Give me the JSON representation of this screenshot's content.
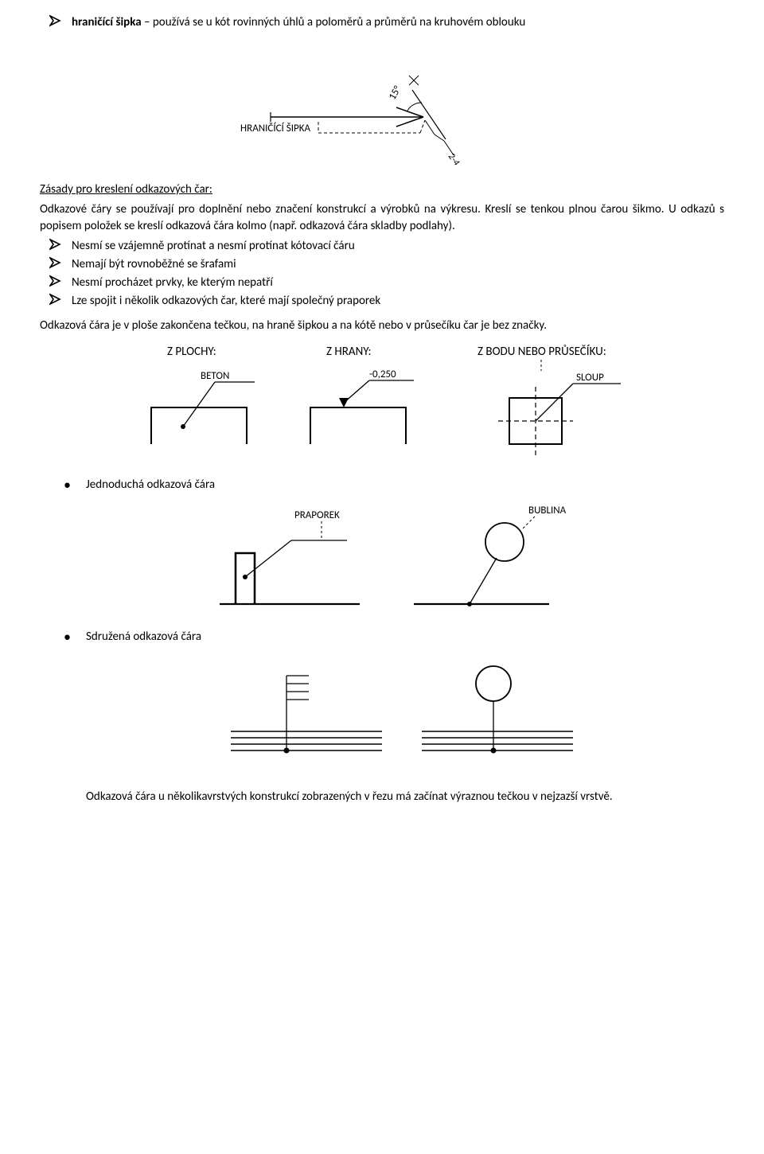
{
  "intro_bullet": {
    "label": "hraničící šipka",
    "rest": " – používá se u kót rovinných úhlů a poloměrů a průměrů na kruhovém oblouku"
  },
  "fig1": {
    "angle_label": "15°",
    "arrow_label": "HRANIČÍCÍ ŠIPKA",
    "dim_label": "2-4 MM",
    "line_color": "#000000",
    "dash": "4,3"
  },
  "section1_title": "Zásady pro kreslení odkazových čar:",
  "section1_p1": "Odkazové čáry se používají pro doplnění nebo značení konstrukcí a výrobků na výkresu. Kreslí se tenkou plnou čarou šikmo. U odkazů s popisem položek se kreslí odkazová čára kolmo (např. odkazová čára skladby podlahy).",
  "rules": [
    "Nesmí se vzájemně protínat a nesmí protínat kótovací čáru",
    "Nemají být rovnoběžné se šrafami",
    "Nesmí procházet prvky, ke kterým nepatří",
    "Lze spojit i několik odkazových čar, které mají společný praporek"
  ],
  "section1_p2": "Odkazová čára je v ploše zakončena tečkou, na hraně šipkou a na kótě nebo v průsečíku čar je bez značky.",
  "fig2": {
    "h1": "Z PLOCHY:",
    "h2": "Z HRANY:",
    "h3": "Z BODU NEBO PRŮSEČÍKU:",
    "l1": "BETON",
    "l2": "-0,250",
    "l3": "SLOUP",
    "dash": "3,3"
  },
  "sub_items": [
    "Jednoduchá odkazová čára",
    "Sdružená odkazová čára"
  ],
  "fig3": {
    "l1": "PRAPOREK",
    "l2": "BUBLINA",
    "dash": "3,3"
  },
  "closing_p": "Odkazová čára u několikavrstvých konstrukcí zobrazených v řezu má začínat výraznou tečkou v nejzazší vrstvě."
}
